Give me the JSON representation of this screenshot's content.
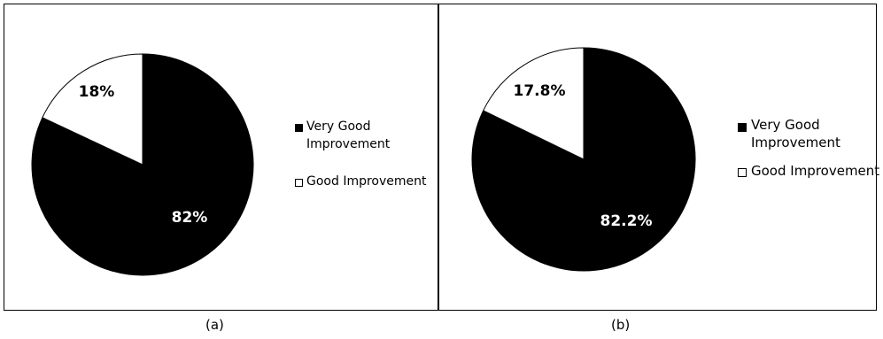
{
  "chart_data": [
    {
      "type": "pie",
      "title": "",
      "panel_label": "(a)",
      "slices": [
        {
          "label": "Very Good Improvement",
          "value": 82,
          "data_label": "82%",
          "color": "#000000"
        },
        {
          "label": "Good Improvement",
          "value": 18,
          "data_label": "18%",
          "color": "#ffffff"
        }
      ],
      "legend": {
        "placement": "right",
        "entries": [
          {
            "line1": "Very Good",
            "line2": "Improvement",
            "color": "#000000"
          },
          {
            "line1": "Good Improvement",
            "line2": "",
            "color": "#ffffff"
          }
        ]
      }
    },
    {
      "type": "pie",
      "title": "",
      "panel_label": "(b)",
      "slices": [
        {
          "label": "Very Good Improvement",
          "value": 82.2,
          "data_label": "82.2%",
          "color": "#000000"
        },
        {
          "label": "Good Improvement",
          "value": 17.8,
          "data_label": "17.8%",
          "color": "#ffffff"
        }
      ],
      "legend": {
        "placement": "right",
        "entries": [
          {
            "line1": "Very Good",
            "line2": "Improvement",
            "color": "#000000"
          },
          {
            "line1": "Good Improvement",
            "line2": "",
            "color": "#ffffff"
          }
        ]
      }
    }
  ]
}
